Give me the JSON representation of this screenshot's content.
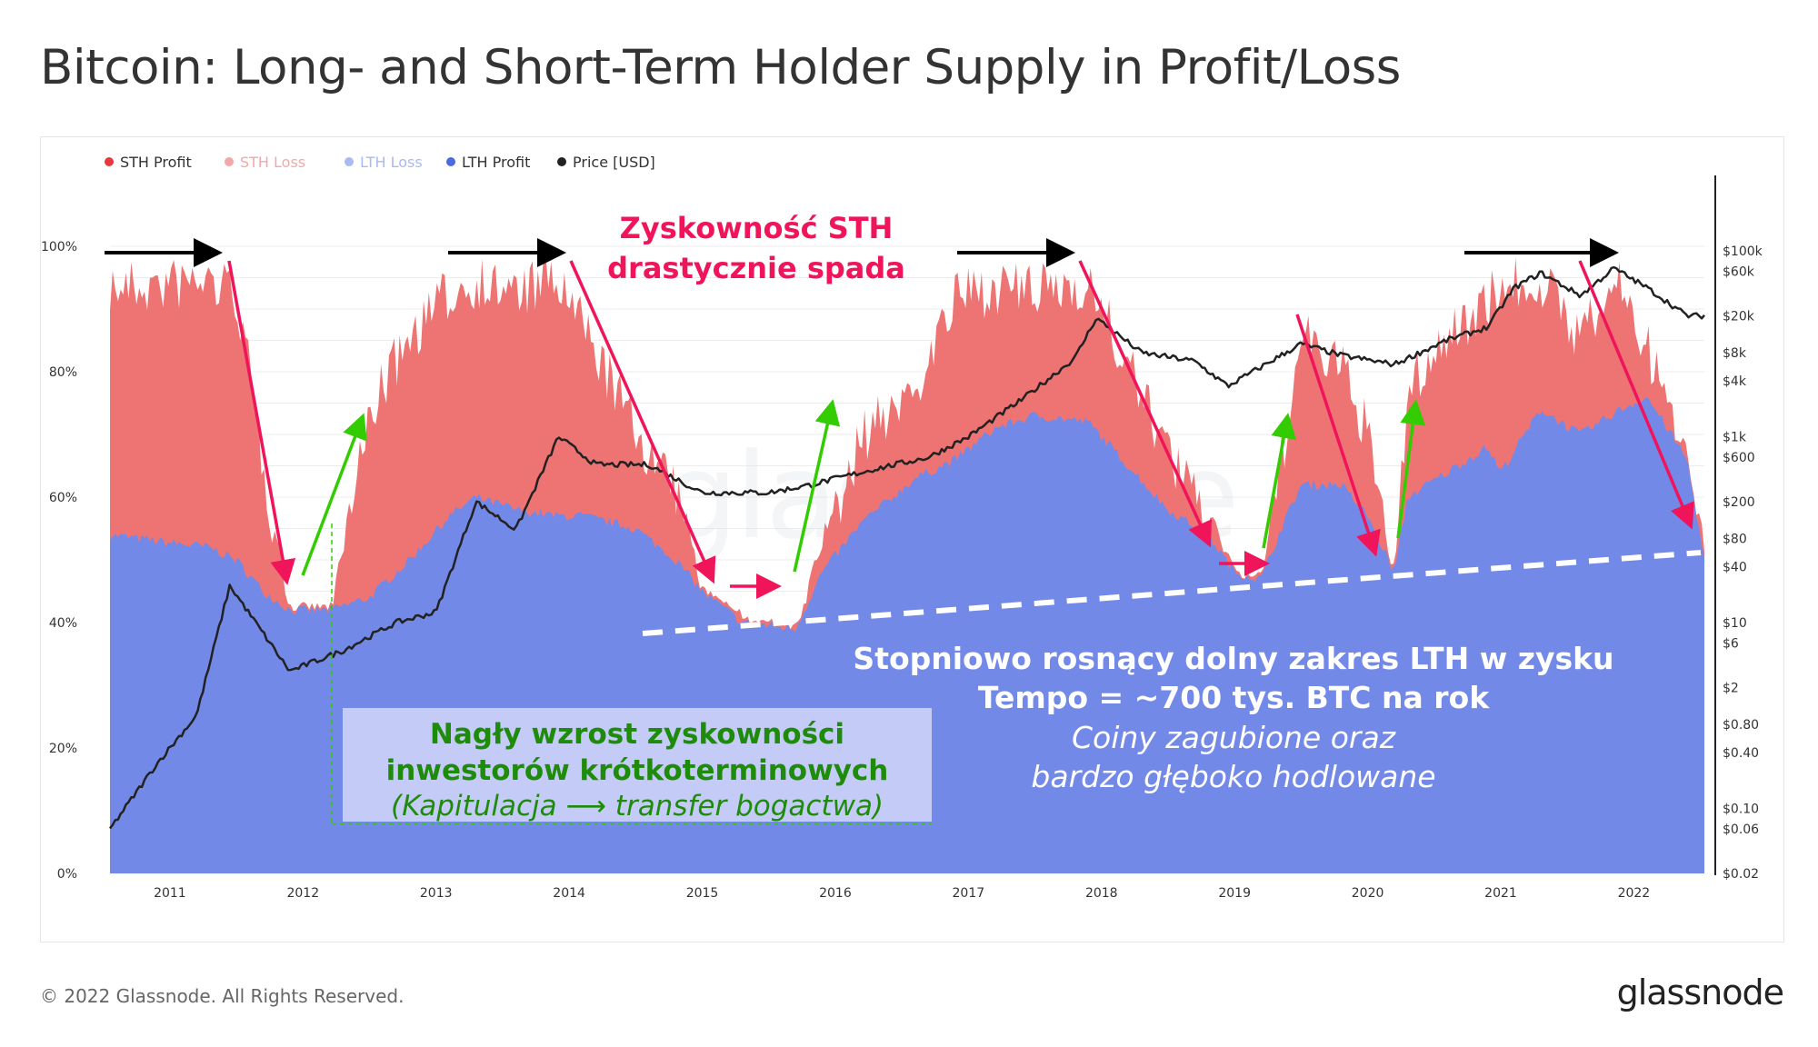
{
  "header": {
    "title": "Bitcoin: Long- and Short-Term Holder Supply in Profit/Loss"
  },
  "footer": {
    "copyright": "© 2022 Glassnode. All Rights Reserved.",
    "brand": "glassnode"
  },
  "watermark": "glassnode",
  "colors": {
    "sth_profit": "#ee7474",
    "lth_profit": "#7389e8",
    "price": "#222222",
    "red_arrow": "#f0145a",
    "green_arrow": "#33cc00",
    "black_arrow": "#000000",
    "green_text": "#1e8c0a"
  },
  "chart_data": {
    "type": "area",
    "legend": [
      {
        "name": "STH Profit",
        "color": "#e8383d"
      },
      {
        "name": "STH Loss",
        "color": "#f4a7a8"
      },
      {
        "name": "LTH Loss",
        "color": "#a9b9f2"
      },
      {
        "name": "LTH Profit",
        "color": "#4a6ae0"
      },
      {
        "name": "Price [USD]",
        "color": "#222222"
      }
    ],
    "x_ticks": [
      "2011",
      "2012",
      "2013",
      "2014",
      "2015",
      "2016",
      "2017",
      "2018",
      "2019",
      "2020",
      "2021",
      "2022"
    ],
    "x_range": [
      2010.55,
      2022.53
    ],
    "y_ticks": [
      "0%",
      "20%",
      "40%",
      "60%",
      "80%",
      "100%"
    ],
    "ylim": [
      0,
      100
    ],
    "y2_ticks": [
      "$100k",
      "$60k",
      "$20k",
      "$8k",
      "$4k",
      "$1k",
      "$600",
      "$200",
      "$80",
      "$40",
      "$10",
      "$6",
      "$2",
      "$0.80",
      "$0.40",
      "$0.10",
      "$0.06",
      "$0.02"
    ],
    "y2_scale": "log",
    "y2_range": [
      0.02,
      100000
    ],
    "series": [
      {
        "name": "LTH Profit",
        "x": [
          2010.55,
          2010.9,
          2011.3,
          2011.5,
          2011.7,
          2011.9,
          2012.2,
          2012.5,
          2012.8,
          2013.1,
          2013.3,
          2013.6,
          2013.9,
          2014.1,
          2014.5,
          2014.8,
          2015.0,
          2015.3,
          2015.7,
          2015.9,
          2016.2,
          2016.6,
          2016.9,
          2017.2,
          2017.5,
          2017.9,
          2018.2,
          2018.5,
          2018.8,
          2019.0,
          2019.2,
          2019.35,
          2019.5,
          2019.8,
          2020.0,
          2020.2,
          2020.3,
          2020.6,
          2020.9,
          2021.0,
          2021.3,
          2021.6,
          2021.9,
          2022.1,
          2022.4,
          2022.53
        ],
        "y": [
          54,
          53,
          52,
          50,
          45,
          42,
          42,
          44,
          50,
          57,
          60,
          58,
          57,
          57,
          55,
          50,
          45,
          40,
          39,
          48,
          56,
          63,
          66,
          71,
          73,
          72,
          65,
          58,
          54,
          48,
          47,
          55,
          62,
          62,
          57,
          48,
          60,
          64,
          68,
          64,
          74,
          70,
          74,
          76,
          66,
          50
        ]
      },
      {
        "name": "STH Profit",
        "x": [
          2010.55,
          2010.9,
          2011.3,
          2011.5,
          2011.7,
          2011.9,
          2012.2,
          2012.5,
          2012.8,
          2013.1,
          2013.3,
          2013.6,
          2013.9,
          2014.1,
          2014.5,
          2014.8,
          2015.0,
          2015.3,
          2015.7,
          2015.9,
          2016.2,
          2016.6,
          2016.9,
          2017.2,
          2017.5,
          2017.9,
          2018.2,
          2018.5,
          2018.8,
          2019.0,
          2019.2,
          2019.35,
          2019.5,
          2019.8,
          2020.0,
          2020.2,
          2020.3,
          2020.6,
          2020.9,
          2021.0,
          2021.3,
          2021.6,
          2021.9,
          2022.1,
          2022.4,
          2022.53
        ],
        "y": [
          98,
          98,
          99,
          97,
          70,
          43,
          42,
          78,
          90,
          97,
          99,
          97,
          99,
          92,
          75,
          65,
          47,
          42,
          40,
          55,
          74,
          82,
          96,
          98,
          97,
          99,
          85,
          72,
          60,
          50,
          47,
          70,
          90,
          85,
          75,
          48,
          82,
          90,
          96,
          98,
          99,
          90,
          99,
          88,
          70,
          55
        ]
      },
      {
        "name": "Price [USD]",
        "x": [
          2010.55,
          2010.9,
          2011.2,
          2011.45,
          2011.9,
          2012.3,
          2012.7,
          2013.0,
          2013.3,
          2013.6,
          2013.92,
          2014.2,
          2014.6,
          2015.0,
          2015.5,
          2015.8,
          2016.3,
          2016.7,
          2017.0,
          2017.4,
          2017.8,
          2017.96,
          2018.3,
          2018.7,
          2018.95,
          2019.5,
          2019.8,
          2020.2,
          2020.6,
          2020.9,
          2021.1,
          2021.3,
          2021.6,
          2021.85,
          2022.1,
          2022.4,
          2022.53
        ],
        "y": [
          0.06,
          0.3,
          1,
          25,
          3,
          5,
          10,
          13,
          200,
          100,
          1000,
          500,
          500,
          250,
          250,
          300,
          450,
          600,
          1000,
          2500,
          7000,
          19000,
          8000,
          6500,
          3500,
          10000,
          7500,
          6000,
          11000,
          15000,
          40000,
          58000,
          33000,
          65000,
          40000,
          20000,
          20000
        ]
      }
    ],
    "annotations": {
      "sth_drop": [
        "Zyskowność STH",
        "drastycznie spada"
      ],
      "lth_floor": [
        "Stopniowo rosnący dolny zakres LTH w zysku",
        "Tempo = ~700 tys. BTC na rok",
        "Coiny zagubione oraz",
        "bardzo głęboko hodlowane"
      ],
      "sth_surge": [
        "Nagły wzrost zyskowności",
        "inwestorów krótkoterminowych",
        "(Kapitulacja ⟶ transfer bogactwa)"
      ]
    }
  }
}
